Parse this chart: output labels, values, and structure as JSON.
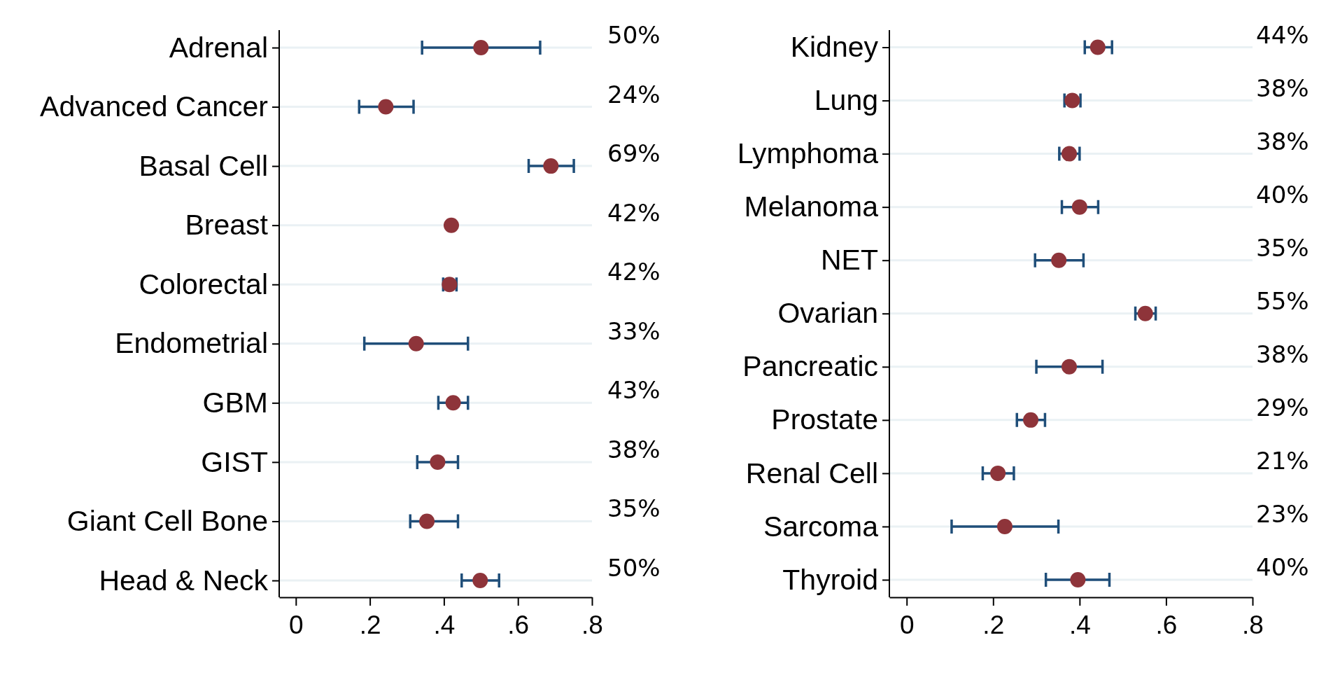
{
  "chart_data": [
    {
      "type": "scatter",
      "orientation": "horizontal",
      "marker": "circle",
      "grid": "y",
      "color": "#8e343a",
      "categories": [
        "Adrenal",
        "Advanced Cancer",
        "Basal Cell",
        "Breast",
        "Colorectal",
        "Endometrial",
        "GBM",
        "GIST",
        "Giant Cell Bone",
        "Head & Neck"
      ],
      "values": [
        0.5,
        0.243,
        0.689,
        0.42,
        0.415,
        0.325,
        0.425,
        0.383,
        0.354,
        0.498
      ],
      "errors": [
        [
          0.341,
          0.66
        ],
        [
          0.171,
          0.318
        ],
        [
          0.629,
          0.751
        ],
        null,
        [
          0.398,
          0.434
        ],
        [
          0.185,
          0.465
        ],
        [
          0.385,
          0.465
        ],
        [
          0.328,
          0.438
        ],
        [
          0.309,
          0.438
        ],
        [
          0.448,
          0.549
        ]
      ],
      "value_labels": [
        "50%",
        "24%",
        "69%",
        "42%",
        "42%",
        "33%",
        "43%",
        "38%",
        "35%",
        "50%"
      ],
      "xlim": [
        -0.045,
        0.8
      ],
      "xticks": [
        0,
        {
          "value": 0.2,
          "label": ".2"
        },
        {
          "value": 0.4,
          "label": ".4"
        },
        {
          "value": 0.6,
          "label": ".6"
        },
        {
          "value": 0.8,
          "label": ".8"
        }
      ]
    },
    {
      "type": "scatter",
      "orientation": "horizontal",
      "marker": "circle",
      "grid": "y",
      "color": "#8e343a",
      "categories": [
        "Kidney",
        "Lung",
        "Lymphoma",
        "Melanoma",
        "NET",
        "Ovarian",
        "Pancreatic",
        "Prostate",
        "Renal Cell",
        "Sarcoma",
        "Thyroid"
      ],
      "values": [
        0.442,
        0.383,
        0.376,
        0.4,
        0.352,
        0.552,
        0.376,
        0.287,
        0.211,
        0.227,
        0.396
      ],
      "errors": [
        [
          0.412,
          0.475
        ],
        [
          0.365,
          0.402
        ],
        [
          0.353,
          0.4
        ],
        [
          0.359,
          0.443
        ],
        [
          0.297,
          0.409
        ],
        [
          0.529,
          0.576
        ],
        [
          0.3,
          0.453
        ],
        [
          0.255,
          0.32
        ],
        [
          0.176,
          0.248
        ],
        [
          0.104,
          0.351
        ],
        [
          0.322,
          0.469
        ]
      ],
      "value_labels": [
        "44%",
        "38%",
        "38%",
        "40%",
        "35%",
        "55%",
        "38%",
        "29%",
        "21%",
        "23%",
        "40%"
      ],
      "xlim": [
        -0.04,
        0.8
      ],
      "xticks": [
        0,
        {
          "value": 0.2,
          "label": ".2"
        },
        {
          "value": 0.4,
          "label": ".4"
        },
        {
          "value": 0.6,
          "label": ".6"
        },
        {
          "value": 0.8,
          "label": ".8"
        }
      ]
    }
  ]
}
